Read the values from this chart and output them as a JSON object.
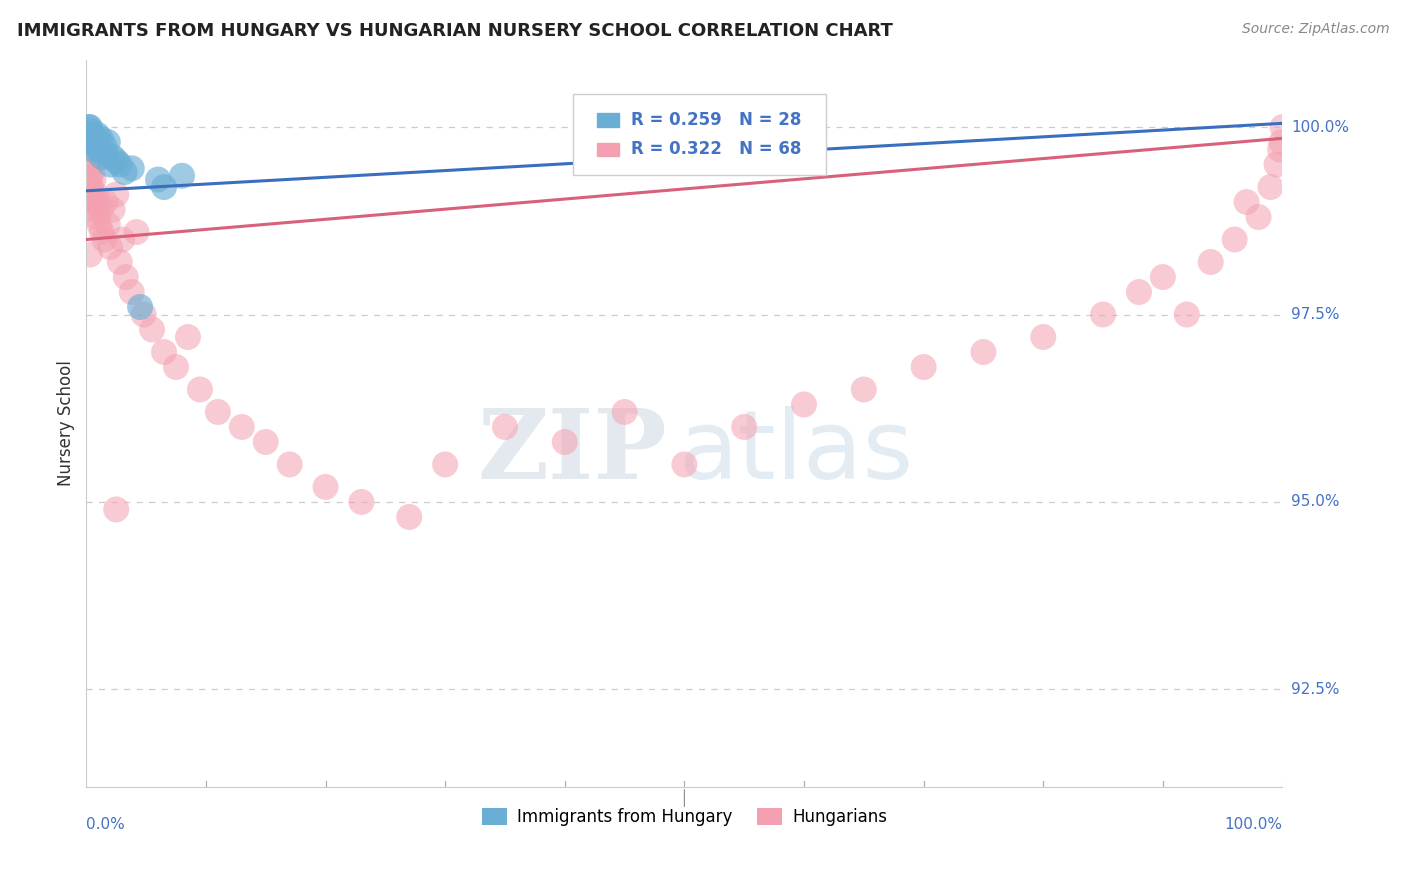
{
  "title": "IMMIGRANTS FROM HUNGARY VS HUNGARIAN NURSERY SCHOOL CORRELATION CHART",
  "source": "Source: ZipAtlas.com",
  "ylabel": "Nursery School",
  "yticks": [
    92.5,
    95.0,
    97.5,
    100.0
  ],
  "ytick_labels": [
    "92.5%",
    "95.0%",
    "97.5%",
    "100.0%"
  ],
  "blue_R": 0.259,
  "blue_N": 28,
  "pink_R": 0.322,
  "pink_N": 68,
  "blue_color": "#6aaed6",
  "pink_color": "#f4a0b0",
  "blue_line_color": "#3a6fbf",
  "pink_line_color": "#d9607a",
  "legend_label_blue": "Immigrants from Hungary",
  "legend_label_pink": "Hungarians",
  "xlim": [
    0,
    1.0
  ],
  "ylim": [
    91.2,
    100.9
  ],
  "blue_x": [
    0.001,
    0.002,
    0.002,
    0.003,
    0.003,
    0.004,
    0.005,
    0.006,
    0.007,
    0.008,
    0.009,
    0.01,
    0.011,
    0.012,
    0.013,
    0.015,
    0.016,
    0.018,
    0.02,
    0.022,
    0.025,
    0.028,
    0.032,
    0.038,
    0.045,
    0.06,
    0.065,
    0.08
  ],
  "blue_y": [
    99.85,
    100.0,
    99.9,
    99.95,
    100.0,
    99.8,
    99.9,
    99.7,
    99.85,
    99.75,
    99.9,
    99.8,
    99.7,
    99.85,
    99.6,
    99.75,
    99.65,
    99.8,
    99.5,
    99.6,
    99.55,
    99.5,
    99.4,
    99.45,
    97.6,
    99.3,
    99.2,
    99.35
  ],
  "pink_x": [
    0.001,
    0.002,
    0.002,
    0.003,
    0.003,
    0.004,
    0.004,
    0.005,
    0.005,
    0.006,
    0.006,
    0.007,
    0.008,
    0.009,
    0.01,
    0.011,
    0.012,
    0.013,
    0.015,
    0.016,
    0.018,
    0.02,
    0.022,
    0.025,
    0.028,
    0.03,
    0.033,
    0.038,
    0.042,
    0.048,
    0.055,
    0.065,
    0.075,
    0.085,
    0.095,
    0.11,
    0.13,
    0.15,
    0.17,
    0.2,
    0.23,
    0.27,
    0.3,
    0.35,
    0.4,
    0.45,
    0.5,
    0.55,
    0.6,
    0.65,
    0.7,
    0.75,
    0.8,
    0.85,
    0.88,
    0.9,
    0.92,
    0.94,
    0.96,
    0.97,
    0.98,
    0.99,
    0.995,
    0.998,
    0.999,
    1.0,
    0.003,
    0.025
  ],
  "pink_y": [
    99.5,
    99.7,
    99.4,
    99.6,
    99.3,
    99.5,
    99.2,
    99.4,
    99.1,
    99.0,
    99.3,
    98.9,
    99.1,
    98.8,
    99.0,
    98.7,
    98.9,
    98.6,
    98.5,
    99.0,
    98.7,
    98.4,
    98.9,
    99.1,
    98.2,
    98.5,
    98.0,
    97.8,
    98.6,
    97.5,
    97.3,
    97.0,
    96.8,
    97.2,
    96.5,
    96.2,
    96.0,
    95.8,
    95.5,
    95.2,
    95.0,
    94.8,
    95.5,
    96.0,
    95.8,
    96.2,
    95.5,
    96.0,
    96.3,
    96.5,
    96.8,
    97.0,
    97.2,
    97.5,
    97.8,
    98.0,
    97.5,
    98.2,
    98.5,
    99.0,
    98.8,
    99.2,
    99.5,
    99.7,
    99.8,
    100.0,
    98.3,
    94.9
  ],
  "blue_trend": [
    99.15,
    100.05
  ],
  "pink_trend": [
    98.5,
    99.85
  ]
}
